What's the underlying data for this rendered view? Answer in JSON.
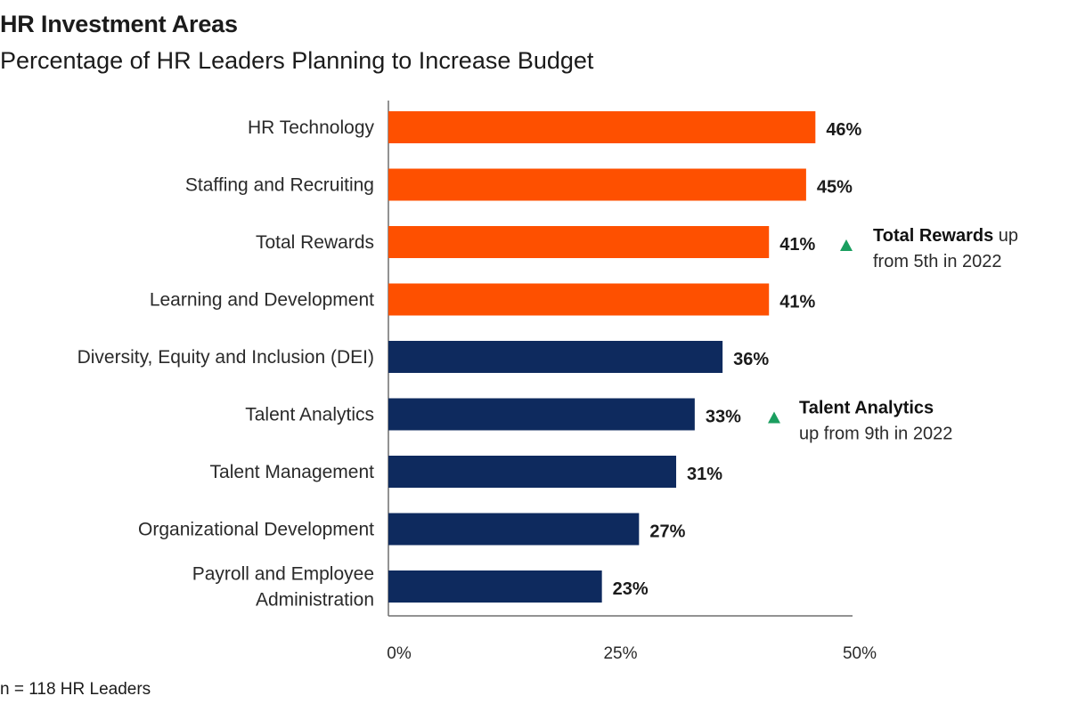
{
  "chart_data": {
    "type": "bar",
    "orientation": "horizontal",
    "title": "HR Investment Areas",
    "subtitle": "Percentage of HR Leaders Planning to Increase Budget",
    "categories": [
      [
        "HR Technology"
      ],
      [
        "Staffing and Recruiting"
      ],
      [
        "Total Rewards"
      ],
      [
        "Learning and Development"
      ],
      [
        "Diversity, Equity and Inclusion (DEI)"
      ],
      [
        "Talent Analytics"
      ],
      [
        "Talent Management"
      ],
      [
        "Organizational Development"
      ],
      [
        "Payroll and Employee",
        "Administration"
      ]
    ],
    "values": [
      46,
      45,
      41,
      41,
      36,
      33,
      31,
      27,
      23
    ],
    "value_labels": [
      "46%",
      "45%",
      "41%",
      "41%",
      "36%",
      "33%",
      "31%",
      "27%",
      "23%"
    ],
    "bar_colors": [
      "#fe5000",
      "#fe5000",
      "#fe5000",
      "#fe5000",
      "#0e2a5e",
      "#0e2a5e",
      "#0e2a5e",
      "#0e2a5e",
      "#0e2a5e"
    ],
    "xlim": [
      0,
      50
    ],
    "x_ticks": [
      0,
      25,
      50
    ],
    "x_tick_labels": [
      "0%",
      "25%",
      "50%"
    ],
    "grid": false,
    "annotations": [
      {
        "category_index": 2,
        "marker": "up-triangle",
        "marker_color": "#1a9e5f",
        "bold_text": "Total Rewards",
        "text_after_bold": " up",
        "second_line": "from 5th in 2022"
      },
      {
        "category_index": 5,
        "marker": "up-triangle",
        "marker_color": "#1a9e5f",
        "bold_text": "Talent Analytics",
        "text_after_bold": "",
        "second_line": "up from 9th in 2022"
      }
    ],
    "footnote": "n = 118 HR Leaders"
  }
}
